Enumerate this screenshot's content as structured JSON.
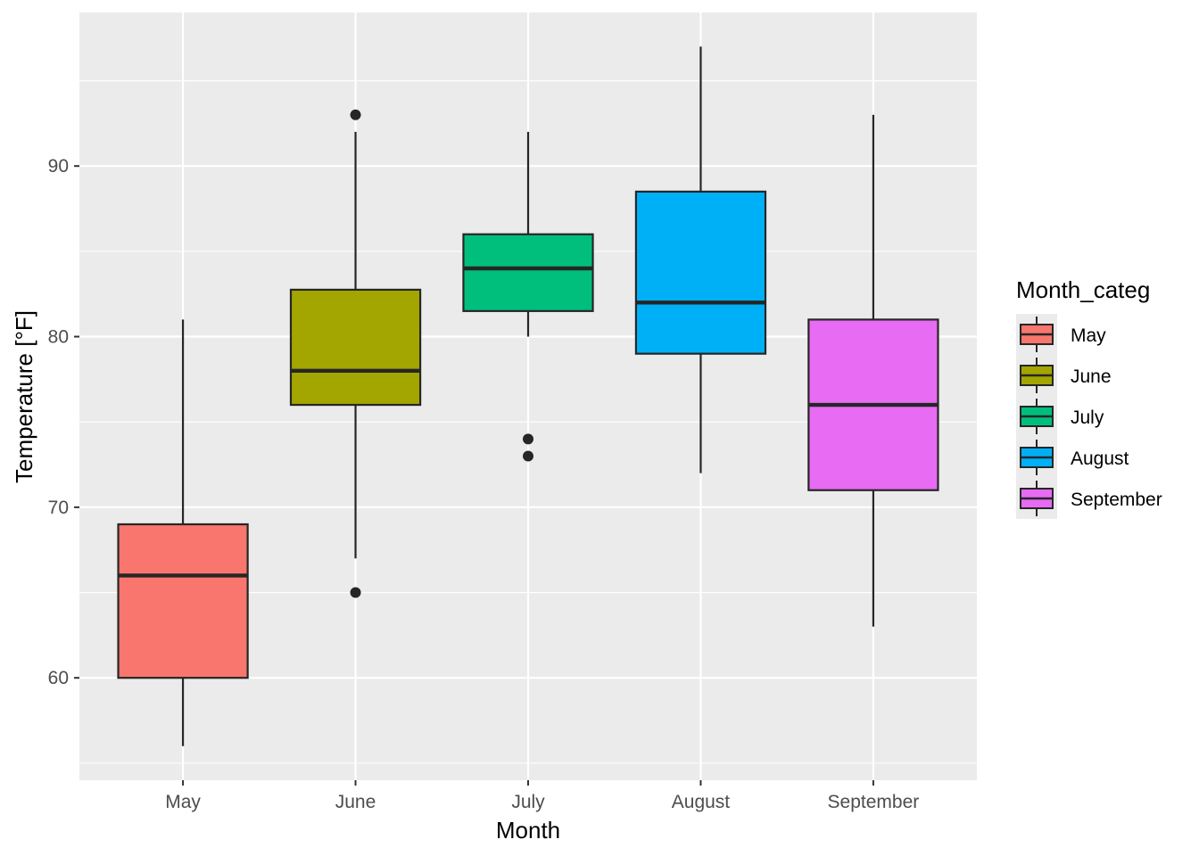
{
  "chart_data": {
    "type": "box",
    "xlabel": "Month",
    "ylabel": "Temperature [°F]",
    "ylim": [
      54,
      99
    ],
    "yticks": [
      60,
      70,
      80,
      90
    ],
    "grid": true,
    "legend_title": "Month_categ",
    "legend_position": "right",
    "categories": [
      "May",
      "June",
      "July",
      "August",
      "September"
    ],
    "series": [
      {
        "name": "May",
        "color": "#F8766D",
        "min": 56,
        "q1": 60,
        "median": 66,
        "q3": 69,
        "max": 81,
        "outliers": []
      },
      {
        "name": "June",
        "color": "#A3A500",
        "min": 67,
        "q1": 76,
        "median": 78,
        "q3": 82.75,
        "max": 92,
        "outliers": [
          93,
          65
        ]
      },
      {
        "name": "July",
        "color": "#00BF7D",
        "min": 80,
        "q1": 81.5,
        "median": 84,
        "q3": 86,
        "max": 92,
        "outliers": [
          74,
          73
        ]
      },
      {
        "name": "August",
        "color": "#00B0F6",
        "min": 72,
        "q1": 79,
        "median": 82,
        "q3": 88.5,
        "max": 97,
        "outliers": []
      },
      {
        "name": "September",
        "color": "#E76BF3",
        "min": 63,
        "q1": 71,
        "median": 76,
        "q3": 81,
        "max": 93,
        "outliers": []
      }
    ]
  }
}
